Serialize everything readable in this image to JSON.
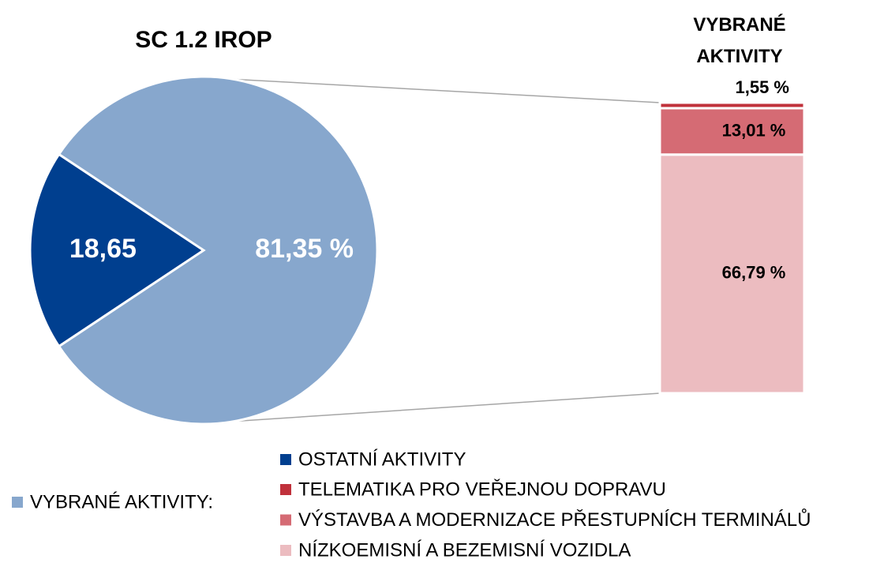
{
  "chart_data": {
    "type": "pie-of-bar",
    "title": "SC 1.2 IROP",
    "pie": {
      "categories": [
        "OSTATNÍ AKTIVITY",
        "VYBRANÉ AKTIVITY:"
      ],
      "values": [
        18.65,
        81.35
      ],
      "value_labels": [
        "18,65",
        "81,35 %"
      ],
      "colors": [
        "#003f8f",
        "#87a7cd"
      ]
    },
    "bar": {
      "title": "VYBRANÉ AKTIVITY",
      "categories": [
        "TELEMATIKA PRO VEŘEJNOU DOPRAVU",
        "VÝSTAVBA A MODERNIZACE PŘESTUPNÍCH TERMINÁLŮ",
        "NÍZKOEMISNÍ A BEZEMISNÍ VOZIDLA"
      ],
      "values": [
        1.55,
        13.01,
        66.79
      ],
      "value_labels": [
        "1,55 %",
        "13,01 %",
        "66,79 %"
      ],
      "colors": [
        "#c0313b",
        "#d56b74",
        "#ecbcc0"
      ]
    }
  }
}
